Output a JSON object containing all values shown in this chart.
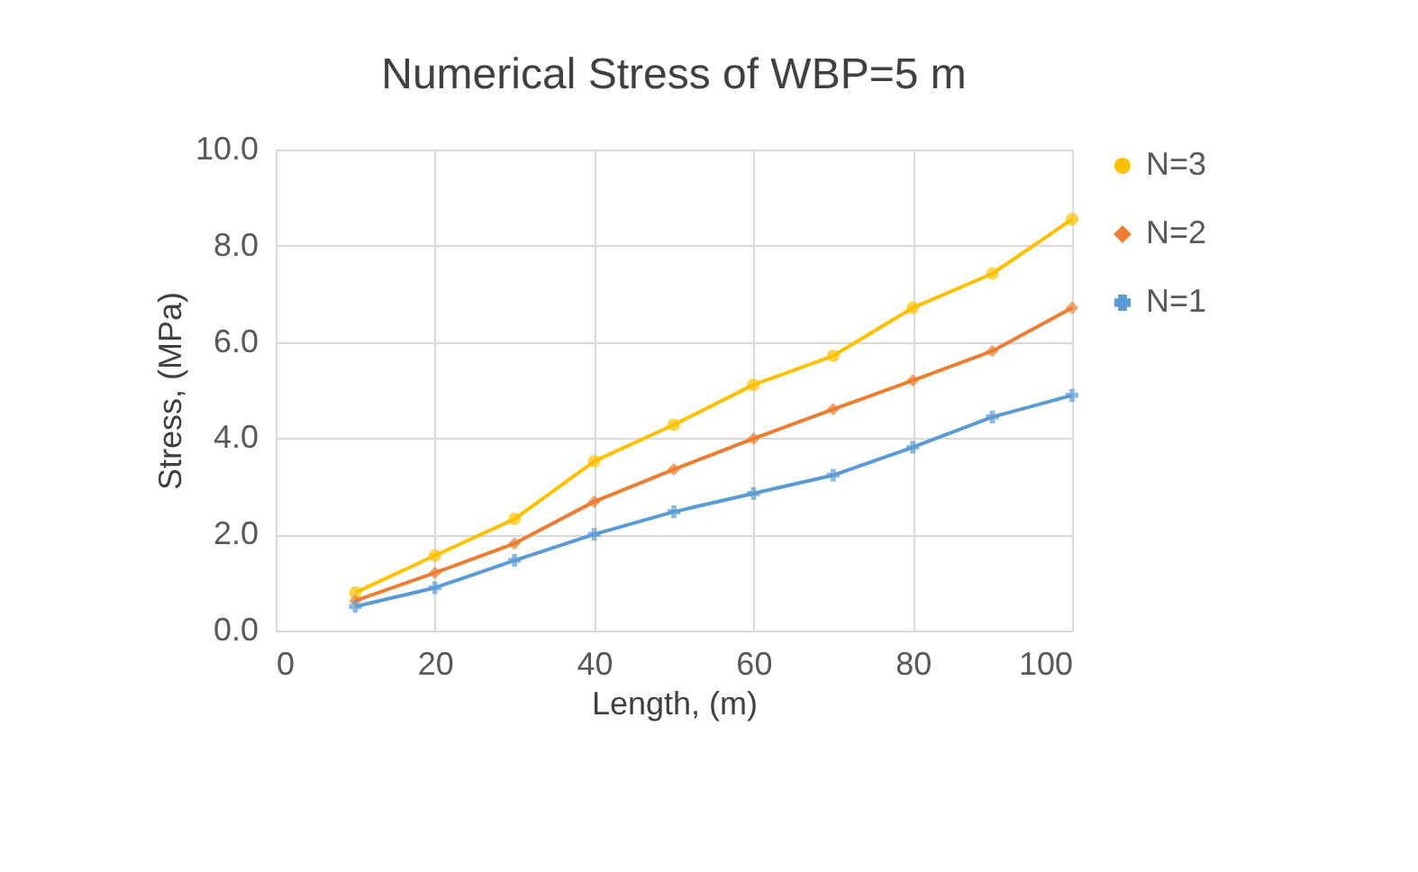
{
  "chart_data": {
    "type": "line",
    "title": "Numerical Stress of WBP=5 m",
    "xlabel": "Length, (m)",
    "ylabel": "Stress, (MPa)",
    "x": [
      10,
      20,
      30,
      40,
      50,
      60,
      70,
      80,
      90,
      100
    ],
    "series": [
      {
        "name": "N=3",
        "color": "#ffc000",
        "marker": "circle",
        "values": [
          0.79,
          1.56,
          2.32,
          3.52,
          4.28,
          5.11,
          5.71,
          6.71,
          7.42,
          8.55
        ]
      },
      {
        "name": "N=2",
        "color": "#ed7d31",
        "marker": "diamond",
        "values": [
          0.62,
          1.2,
          1.81,
          2.68,
          3.35,
          3.99,
          4.6,
          5.2,
          5.81,
          6.71
        ]
      },
      {
        "name": "N=1",
        "color": "#5b9bd5",
        "marker": "cross",
        "values": [
          0.5,
          0.89,
          1.46,
          2.0,
          2.47,
          2.85,
          3.23,
          3.81,
          4.44,
          4.89
        ]
      }
    ],
    "xlim": [
      0,
      100
    ],
    "xticks": [
      0,
      20,
      40,
      60,
      80,
      100
    ],
    "ylim": [
      0,
      10
    ],
    "yticks": [
      {
        "value": 0,
        "label": "0.0"
      },
      {
        "value": 2,
        "label": "2.0"
      },
      {
        "value": 4,
        "label": "4.0"
      },
      {
        "value": 6,
        "label": "6.0"
      },
      {
        "value": 8,
        "label": "8.0"
      },
      {
        "value": 10,
        "label": "10.0"
      }
    ],
    "grid": true,
    "legend": "right",
    "line_style": "solid"
  }
}
